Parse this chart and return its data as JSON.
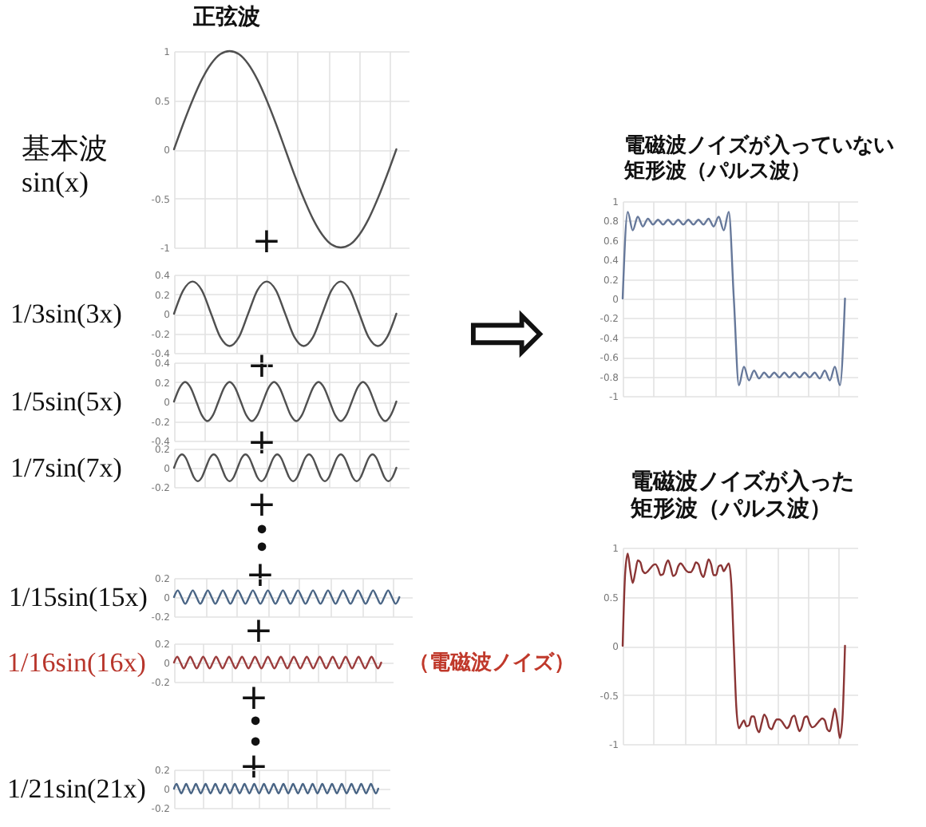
{
  "chart_data": [
    {
      "type": "line",
      "title": "正弦波",
      "ylabel": "基本波\nsin(x)",
      "annotations": [
        "+"
      ],
      "categories": [
        null,
        null,
        null,
        null,
        null,
        null,
        null,
        null,
        null,
        null,
        null,
        null,
        null,
        null,
        null,
        null,
        null,
        null,
        null,
        null,
        null,
        null,
        null,
        null,
        null
      ],
      "series": [
        {
          "color": "#505050",
          "values": [
            0,
            0.26,
            0.5,
            0.71,
            0.87,
            0.97,
            1,
            0.97,
            0.87,
            0.71,
            0.5,
            0.26,
            0,
            -0.26,
            -0.5,
            -0.71,
            -0.87,
            -0.97,
            -1,
            -0.97,
            -0.87,
            -0.71,
            -0.5,
            -0.26,
            0
          ]
        }
      ],
      "ylim": [
        -1,
        1
      ],
      "yticks": [
        -1,
        -0.5,
        0,
        0.5,
        1
      ],
      "grid": true,
      "tick_labels": "y"
    },
    {
      "type": "line",
      "ylabel": "1/3sin(3x)",
      "annotations": [
        "+"
      ],
      "categories": [
        null,
        null,
        null,
        null,
        null,
        null,
        null,
        null,
        null,
        null,
        null,
        null,
        null,
        null,
        null,
        null,
        null,
        null,
        null,
        null,
        null,
        null,
        null,
        null,
        null
      ],
      "series": [
        {
          "color": "#505050",
          "values": [
            0,
            0.24,
            0.33,
            0.24,
            0,
            -0.24,
            -0.33,
            -0.24,
            0,
            0.24,
            0.33,
            0.24,
            0,
            -0.24,
            -0.33,
            -0.24,
            0,
            0.24,
            0.33,
            0.24,
            0,
            -0.24,
            -0.33,
            -0.24,
            0
          ]
        }
      ],
      "ylim": [
        -0.4,
        0.4
      ],
      "yticks": [
        -0.4,
        -0.2,
        0,
        0.2,
        0.4
      ],
      "grid": true,
      "tick_labels": "y"
    },
    {
      "type": "line",
      "ylabel": "1/5sin(5x)",
      "annotations": [
        "+"
      ],
      "categories": [
        null,
        null,
        null,
        null,
        null,
        null,
        null,
        null,
        null,
        null,
        null,
        null,
        null,
        null,
        null,
        null,
        null,
        null,
        null,
        null,
        null,
        null,
        null,
        null,
        null,
        null,
        null,
        null,
        null,
        null,
        null,
        null,
        null,
        null,
        null,
        null,
        null,
        null,
        null,
        null,
        null
      ],
      "series": [
        {
          "color": "#505050",
          "values": [
            0,
            0.14,
            0.2,
            0.14,
            0,
            -0.14,
            -0.2,
            -0.14,
            0,
            0.14,
            0.2,
            0.14,
            0,
            -0.14,
            -0.2,
            -0.14,
            0,
            0.14,
            0.2,
            0.14,
            0,
            -0.14,
            -0.2,
            -0.14,
            0,
            0.14,
            0.2,
            0.14,
            0,
            -0.14,
            -0.2,
            -0.14,
            0,
            0.14,
            0.2,
            0.14,
            0,
            -0.14,
            -0.2,
            -0.14,
            0
          ]
        }
      ],
      "ylim": [
        -0.4,
        0.4
      ],
      "yticks": [
        -0.4,
        -0.2,
        0,
        0.2,
        0.4
      ],
      "grid": true,
      "tick_labels": "y"
    },
    {
      "type": "line",
      "ylabel": "1/7sin(7x)",
      "annotations": [
        "+",
        "•",
        "•",
        "+"
      ],
      "categories": [
        null,
        null,
        null,
        null,
        null,
        null,
        null,
        null,
        null,
        null,
        null,
        null,
        null,
        null,
        null,
        null,
        null,
        null,
        null,
        null,
        null,
        null,
        null,
        null,
        null,
        null,
        null,
        null,
        null,
        null,
        null,
        null,
        null,
        null,
        null,
        null,
        null,
        null,
        null,
        null,
        null,
        null,
        null,
        null,
        null,
        null,
        null,
        null,
        null,
        null,
        null,
        null,
        null,
        null,
        null,
        null,
        null
      ],
      "series": [
        {
          "color": "#505050",
          "values": [
            0,
            0.1,
            0.14,
            0.1,
            0,
            -0.1,
            -0.14,
            -0.1,
            0,
            0.1,
            0.14,
            0.1,
            0,
            -0.1,
            -0.14,
            -0.1,
            0,
            0.1,
            0.14,
            0.1,
            0,
            -0.1,
            -0.14,
            -0.1,
            0,
            0.1,
            0.14,
            0.1,
            0,
            -0.1,
            -0.14,
            -0.1,
            0,
            0.1,
            0.14,
            0.1,
            0,
            -0.1,
            -0.14,
            -0.1,
            0,
            0.1,
            0.14,
            0.1,
            0,
            -0.1,
            -0.14,
            -0.1,
            0,
            0.1,
            0.14,
            0.1,
            0,
            -0.1,
            -0.14,
            -0.1,
            0
          ]
        }
      ],
      "ylim": [
        -0.2,
        0.2
      ],
      "yticks": [
        -0.2,
        0,
        0.2
      ],
      "grid": true,
      "tick_labels": "y"
    },
    {
      "type": "line",
      "ylabel": "1/15sin(15x)",
      "annotations": [
        "+"
      ],
      "categories": [
        null,
        null,
        null,
        null,
        null,
        null,
        null,
        null,
        null,
        null,
        null,
        null,
        null,
        null,
        null,
        null,
        null,
        null,
        null,
        null,
        null,
        null,
        null,
        null,
        null,
        null,
        null,
        null,
        null,
        null,
        null,
        null,
        null,
        null,
        null,
        null,
        null,
        null,
        null,
        null,
        null,
        null,
        null,
        null,
        null,
        null,
        null,
        null,
        null,
        null,
        null,
        null,
        null,
        null,
        null,
        null,
        null,
        null,
        null,
        null,
        null
      ],
      "series": [
        {
          "color": "#4a6585",
          "values": [
            0,
            0.07,
            0,
            -0.07,
            0,
            0.07,
            0,
            -0.07,
            0,
            0.07,
            0,
            -0.07,
            0,
            0.07,
            0,
            -0.07,
            0,
            0.07,
            0,
            -0.07,
            0,
            0.07,
            0,
            -0.07,
            0,
            0.07,
            0,
            -0.07,
            0,
            0.07,
            0,
            -0.07,
            0,
            0.07,
            0,
            -0.07,
            0,
            0.07,
            0,
            -0.07,
            0,
            0.07,
            0,
            -0.07,
            0,
            0.07,
            0,
            -0.07,
            0,
            0.07,
            0,
            -0.07,
            0,
            0.07,
            0,
            -0.07,
            0,
            0.07,
            0,
            -0.07,
            0
          ]
        }
      ],
      "ylim": [
        -0.2,
        0.2
      ],
      "yticks": [
        -0.2,
        0,
        0.2
      ],
      "grid": true,
      "tick_labels": "y"
    },
    {
      "type": "line",
      "ylabel": "1/16sin(16x)",
      "annotations": [
        "（電磁波ノイズ）",
        "+",
        "•",
        "•",
        "+"
      ],
      "categories": [
        null,
        null,
        null,
        null,
        null,
        null,
        null,
        null,
        null,
        null,
        null,
        null,
        null,
        null,
        null,
        null,
        null,
        null,
        null,
        null,
        null,
        null,
        null,
        null,
        null,
        null,
        null,
        null,
        null,
        null,
        null,
        null,
        null,
        null,
        null,
        null,
        null,
        null,
        null,
        null,
        null,
        null,
        null,
        null,
        null,
        null,
        null,
        null,
        null,
        null,
        null,
        null,
        null,
        null,
        null,
        null,
        null,
        null,
        null,
        null,
        null,
        null,
        null,
        null,
        null
      ],
      "series": [
        {
          "color": "#9b3c3c",
          "values": [
            0,
            0.06,
            0,
            -0.06,
            0,
            0.06,
            0,
            -0.06,
            0,
            0.06,
            0,
            -0.06,
            0,
            0.06,
            0,
            -0.06,
            0,
            0.06,
            0,
            -0.06,
            0,
            0.06,
            0,
            -0.06,
            0,
            0.06,
            0,
            -0.06,
            0,
            0.06,
            0,
            -0.06,
            0,
            0.06,
            0,
            -0.06,
            0,
            0.06,
            0,
            -0.06,
            0,
            0.06,
            0,
            -0.06,
            0,
            0.06,
            0,
            -0.06,
            0,
            0.06,
            0,
            -0.06,
            0,
            0.06,
            0,
            -0.06,
            0,
            0.06,
            0,
            -0.06,
            0,
            0.06,
            0,
            -0.06,
            0
          ]
        }
      ],
      "ylim": [
        -0.2,
        0.2
      ],
      "yticks": [
        -0.2,
        0,
        0.2
      ],
      "grid": true,
      "tick_labels": "y"
    },
    {
      "type": "line",
      "ylabel": "1/21sin(21x)",
      "categories": [
        null,
        null,
        null,
        null,
        null,
        null,
        null,
        null,
        null,
        null,
        null,
        null,
        null,
        null,
        null,
        null,
        null,
        null,
        null,
        null,
        null,
        null,
        null,
        null,
        null,
        null,
        null,
        null,
        null,
        null,
        null,
        null,
        null,
        null,
        null,
        null,
        null,
        null,
        null,
        null,
        null,
        null,
        null,
        null,
        null,
        null,
        null,
        null,
        null,
        null,
        null,
        null,
        null,
        null,
        null,
        null,
        null,
        null,
        null,
        null,
        null,
        null,
        null,
        null,
        null,
        null,
        null,
        null,
        null,
        null,
        null,
        null,
        null,
        null,
        null,
        null,
        null,
        null,
        null,
        null,
        null,
        null,
        null,
        null,
        null
      ],
      "series": [
        {
          "color": "#4a6585",
          "values": [
            0,
            0.05,
            0,
            -0.05,
            0,
            0.05,
            0,
            -0.05,
            0,
            0.05,
            0,
            -0.05,
            0,
            0.05,
            0,
            -0.05,
            0,
            0.05,
            0,
            -0.05,
            0,
            0.05,
            0,
            -0.05,
            0,
            0.05,
            0,
            -0.05,
            0,
            0.05,
            0,
            -0.05,
            0,
            0.05,
            0,
            -0.05,
            0,
            0.05,
            0,
            -0.05,
            0,
            0.05,
            0,
            -0.05,
            0,
            0.05,
            0,
            -0.05,
            0,
            0.05,
            0,
            -0.05,
            0,
            0.05,
            0,
            -0.05,
            0,
            0.05,
            0,
            -0.05,
            0,
            0.05,
            0,
            -0.05,
            0,
            0.05,
            0,
            -0.05,
            0,
            0.05,
            0,
            -0.05,
            0,
            0.05,
            0,
            -0.05,
            0,
            0.05,
            0,
            -0.05,
            0,
            0.05,
            0,
            -0.05,
            0
          ]
        }
      ],
      "ylim": [
        -0.2,
        0.2
      ],
      "yticks": [
        -0.2,
        0,
        0.2
      ],
      "grid": true,
      "tick_labels": "y"
    },
    {
      "type": "line",
      "title": "電磁波ノイズが入っていない",
      "subtitle": "矩形波（パルス波）",
      "annotations": [
        "⇨"
      ],
      "categories": [
        null,
        null,
        null,
        null,
        null,
        null,
        null,
        null,
        null,
        null,
        null,
        null,
        null,
        null,
        null,
        null,
        null,
        null,
        null,
        null,
        null,
        null,
        null,
        null,
        null,
        null,
        null,
        null,
        null,
        null,
        null,
        null,
        null,
        null,
        null,
        null,
        null,
        null,
        null,
        null,
        null,
        null,
        null,
        null,
        null
      ],
      "series": [
        {
          "color": "#66789a",
          "values": [
            0,
            0.89,
            0.7,
            0.84,
            0.74,
            0.82,
            0.76,
            0.81,
            0.76,
            0.81,
            0.76,
            0.81,
            0.76,
            0.81,
            0.76,
            0.81,
            0.76,
            0.82,
            0.74,
            0.84,
            0.7,
            0.89,
            0,
            -0.89,
            -0.7,
            -0.84,
            -0.74,
            -0.82,
            -0.76,
            -0.81,
            -0.76,
            -0.81,
            -0.76,
            -0.81,
            -0.76,
            -0.81,
            -0.76,
            -0.81,
            -0.76,
            -0.82,
            -0.74,
            -0.84,
            -0.7,
            -0.89,
            0
          ]
        }
      ],
      "ylim": [
        -1,
        1
      ],
      "yticks": [
        -1,
        -0.8,
        -0.6,
        -0.4,
        -0.2,
        0,
        0.2,
        0.4,
        0.6,
        0.8,
        1
      ],
      "grid": true,
      "tick_labels": "y"
    },
    {
      "type": "line",
      "title": "電磁波ノイズが入った",
      "subtitle": "矩形波（パルス波）",
      "categories": [
        null,
        null,
        null,
        null,
        null,
        null,
        null,
        null,
        null,
        null,
        null,
        null,
        null,
        null,
        null,
        null,
        null,
        null,
        null,
        null,
        null,
        null,
        null,
        null,
        null,
        null,
        null,
        null,
        null,
        null,
        null,
        null,
        null,
        null,
        null,
        null,
        null,
        null,
        null,
        null,
        null,
        null,
        null,
        null,
        null,
        null,
        null,
        null,
        null,
        null,
        null,
        null,
        null,
        null,
        null,
        null,
        null,
        null,
        null,
        null,
        null,
        null,
        null,
        null,
        null,
        null,
        null,
        null,
        null,
        null,
        null,
        null,
        null,
        null,
        null,
        null,
        null,
        null,
        null,
        null,
        null,
        null,
        null,
        null,
        null,
        null,
        null,
        null,
        null
      ],
      "series": [
        {
          "color": "#8a3535",
          "values": [
            0,
            0.74,
            0.94,
            0.77,
            0.64,
            0.75,
            0.87,
            0.85,
            0.76,
            0.74,
            0.76,
            0.79,
            0.82,
            0.83,
            0.79,
            0.72,
            0.73,
            0.82,
            0.87,
            0.8,
            0.71,
            0.73,
            0.81,
            0.84,
            0.81,
            0.77,
            0.75,
            0.75,
            0.79,
            0.85,
            0.83,
            0.74,
            0.7,
            0.79,
            0.88,
            0.83,
            0.72,
            0.72,
            0.81,
            0.82,
            0.76,
            0.8,
            0.84,
            0.63,
            0,
            -0.63,
            -0.84,
            -0.8,
            -0.76,
            -0.82,
            -0.81,
            -0.72,
            -0.72,
            -0.83,
            -0.88,
            -0.79,
            -0.7,
            -0.74,
            -0.83,
            -0.85,
            -0.79,
            -0.75,
            -0.75,
            -0.77,
            -0.81,
            -0.84,
            -0.81,
            -0.73,
            -0.71,
            -0.8,
            -0.87,
            -0.82,
            -0.73,
            -0.72,
            -0.79,
            -0.83,
            -0.82,
            -0.79,
            -0.76,
            -0.74,
            -0.76,
            -0.85,
            -0.87,
            -0.75,
            -0.64,
            -0.77,
            -0.94,
            -0.74,
            0
          ]
        }
      ],
      "ylim": [
        -1,
        1
      ],
      "yticks": [
        -1,
        -0.5,
        0,
        0.5,
        1
      ],
      "grid": true,
      "tick_labels": "y"
    }
  ]
}
